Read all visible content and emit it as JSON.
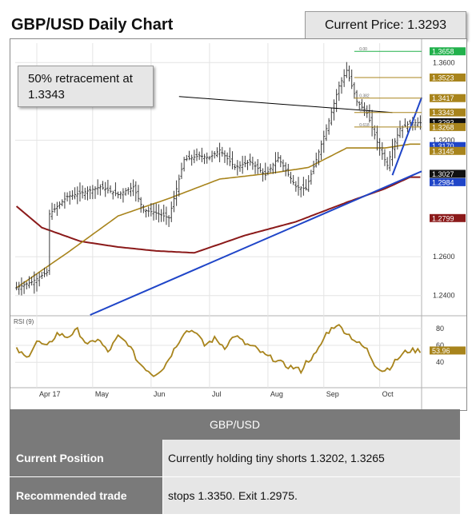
{
  "header": {
    "title": "GBP/USD Daily Chart",
    "current_price": "Current Price: 1.3293",
    "callout_lines": [
      "50% retracement at",
      "1.3343"
    ]
  },
  "colors": {
    "candle": "#3a3a3a",
    "ma_short": "#a8841c",
    "ma_long": "#8b1a1a",
    "trendline": "#1f45c8",
    "level_gold": "#a8841c",
    "level_green": "#22b14c",
    "level_blue": "#1f45c8",
    "level_black": "#111111",
    "level_red": "#8b1a1a",
    "rsi": "#a8841c"
  },
  "chart_data": {
    "type": "line",
    "title": "GBP/USD Daily Chart",
    "y_axis": {
      "range": [
        1.23,
        1.37
      ],
      "ticks": [
        "1.3600",
        "1.3200",
        "1.2600",
        "1.2400"
      ],
      "tick_values": [
        1.36,
        1.32,
        1.26,
        1.24
      ]
    },
    "x_axis": {
      "months": [
        "Apr 17",
        "May",
        "Jun",
        "Jul",
        "Aug",
        "Sep",
        "Oct"
      ],
      "month_index": [
        8,
        30,
        53,
        76,
        99,
        121,
        143
      ]
    },
    "n_days": 160,
    "price_series": {
      "name": "GBP/USD",
      "anchors": [
        [
          0,
          1.244
        ],
        [
          6,
          1.247
        ],
        [
          12,
          1.252
        ],
        [
          13,
          1.282
        ],
        [
          20,
          1.291
        ],
        [
          26,
          1.293
        ],
        [
          33,
          1.296
        ],
        [
          40,
          1.292
        ],
        [
          46,
          1.296
        ],
        [
          50,
          1.284
        ],
        [
          54,
          1.283
        ],
        [
          60,
          1.28
        ],
        [
          66,
          1.31
        ],
        [
          72,
          1.312
        ],
        [
          76,
          1.311
        ],
        [
          80,
          1.315
        ],
        [
          86,
          1.306
        ],
        [
          92,
          1.309
        ],
        [
          98,
          1.302
        ],
        [
          103,
          1.311
        ],
        [
          110,
          1.296
        ],
        [
          114,
          1.295
        ],
        [
          118,
          1.31
        ],
        [
          123,
          1.33
        ],
        [
          127,
          1.348
        ],
        [
          130,
          1.356
        ],
        [
          134,
          1.34
        ],
        [
          138,
          1.334
        ],
        [
          142,
          1.319
        ],
        [
          146,
          1.307
        ],
        [
          148,
          1.316
        ],
        [
          151,
          1.326
        ],
        [
          155,
          1.329
        ]
      ]
    },
    "ma_short": {
      "name": "50-day MA",
      "anchors": [
        [
          0,
          1.244
        ],
        [
          20,
          1.262
        ],
        [
          40,
          1.281
        ],
        [
          60,
          1.29
        ],
        [
          80,
          1.3
        ],
        [
          100,
          1.303
        ],
        [
          115,
          1.306
        ],
        [
          130,
          1.316
        ],
        [
          145,
          1.316
        ],
        [
          155,
          1.318
        ]
      ]
    },
    "ma_long": {
      "name": "200-day MA",
      "anchors": [
        [
          0,
          1.286
        ],
        [
          10,
          1.275
        ],
        [
          25,
          1.268
        ],
        [
          40,
          1.265
        ],
        [
          55,
          1.263
        ],
        [
          70,
          1.262
        ],
        [
          90,
          1.271
        ],
        [
          110,
          1.278
        ],
        [
          130,
          1.288
        ],
        [
          145,
          1.295
        ],
        [
          155,
          1.301
        ]
      ]
    },
    "trendlines": [
      {
        "from": [
          29,
          1.23
        ],
        "to": [
          165,
          1.304
        ]
      },
      {
        "from": [
          148,
          1.302
        ],
        "to": [
          165,
          1.342
        ]
      },
      {
        "from": [
          64,
          1.3425
        ],
        "to": [
          148,
          1.3343
        ]
      }
    ],
    "fib_lines": [
      {
        "value": 1.3658,
        "from": 133
      },
      {
        "value": 1.3523,
        "from": 133
      },
      {
        "value": 1.3417,
        "from": 133
      },
      {
        "value": 1.3343,
        "from": 133
      },
      {
        "value": 1.3268,
        "from": 133
      }
    ],
    "fib_small_labels": [
      "0.00",
      "0.382",
      "0.50",
      "0.618"
    ],
    "fib_small_values": [
      1.3658,
      1.3417,
      1.3343,
      1.3268
    ],
    "level_labels": [
      {
        "text": "1.3658",
        "value": 1.3658,
        "color": "green"
      },
      {
        "text": "1.3523",
        "value": 1.3523,
        "color": "gold"
      },
      {
        "text": "1.3417",
        "value": 1.3417,
        "color": "gold"
      },
      {
        "text": "1.3343",
        "value": 1.3343,
        "color": "gold"
      },
      {
        "text": "1.3293",
        "value": 1.3293,
        "color": "black"
      },
      {
        "text": "1.3268",
        "value": 1.3268,
        "color": "gold"
      },
      {
        "text": "1.3170",
        "value": 1.317,
        "color": "blue"
      },
      {
        "text": "1.3145",
        "value": 1.3145,
        "color": "gold"
      },
      {
        "text": "1.3027",
        "value": 1.3027,
        "color": "black"
      },
      {
        "text": "1.2984",
        "value": 1.2984,
        "color": "blue"
      },
      {
        "text": "1.2799",
        "value": 1.2799,
        "color": "red"
      }
    ],
    "rsi": {
      "name": "RSI (9)",
      "label": "RSI (9)",
      "range": [
        10,
        95
      ],
      "ticks": [
        "80",
        "60",
        "40"
      ],
      "tick_values": [
        80,
        60,
        40
      ],
      "current_label": "53.96",
      "current_value": 53.96,
      "anchors": [
        [
          0,
          55
        ],
        [
          4,
          45
        ],
        [
          8,
          65
        ],
        [
          12,
          58
        ],
        [
          16,
          74
        ],
        [
          20,
          70
        ],
        [
          24,
          78
        ],
        [
          28,
          60
        ],
        [
          32,
          68
        ],
        [
          36,
          52
        ],
        [
          40,
          70
        ],
        [
          44,
          62
        ],
        [
          48,
          40
        ],
        [
          50,
          35
        ],
        [
          52,
          30
        ],
        [
          54,
          25
        ],
        [
          58,
          34
        ],
        [
          62,
          55
        ],
        [
          66,
          76
        ],
        [
          70,
          78
        ],
        [
          74,
          60
        ],
        [
          78,
          68
        ],
        [
          82,
          58
        ],
        [
          86,
          72
        ],
        [
          90,
          62
        ],
        [
          94,
          57
        ],
        [
          98,
          48
        ],
        [
          102,
          43
        ],
        [
          106,
          36
        ],
        [
          110,
          33
        ],
        [
          112,
          30
        ],
        [
          114,
          40
        ],
        [
          118,
          50
        ],
        [
          122,
          74
        ],
        [
          126,
          85
        ],
        [
          130,
          75
        ],
        [
          134,
          64
        ],
        [
          138,
          55
        ],
        [
          141,
          38
        ],
        [
          144,
          30
        ],
        [
          147,
          34
        ],
        [
          150,
          44
        ],
        [
          153,
          52
        ],
        [
          155,
          54
        ]
      ]
    }
  },
  "table": {
    "header": "GBP/USD",
    "rows": [
      {
        "label": "Current Position",
        "value": "Currently holding tiny shorts 1.3202, 1.3265"
      },
      {
        "label": "Recommended trade",
        "value": "stops 1.3350. Exit 1.2975."
      }
    ]
  }
}
